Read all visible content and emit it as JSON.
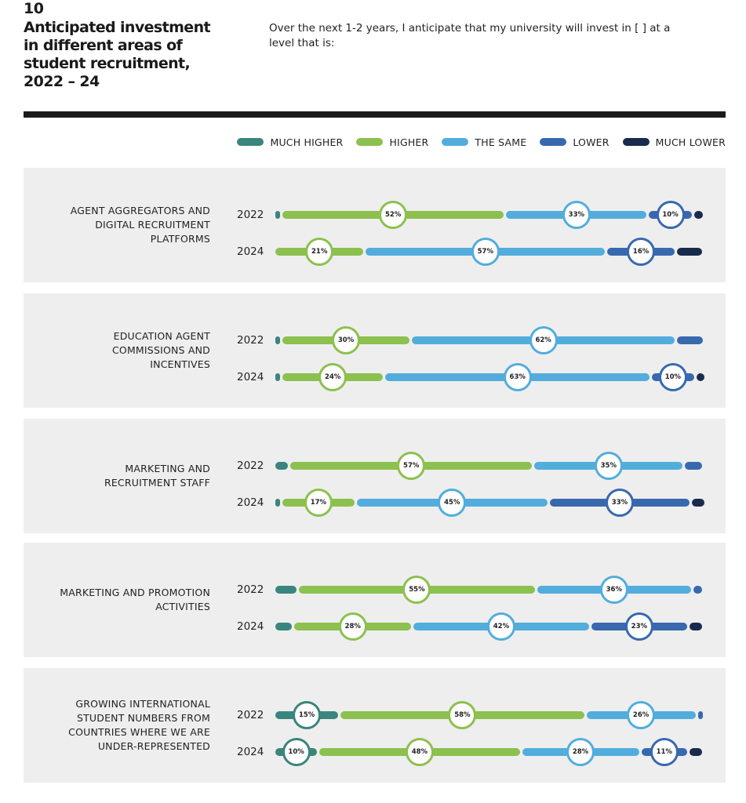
{
  "figure": {
    "number": "10",
    "title_lines": [
      "Anticipated investment",
      "in different areas of",
      "student recruitment,",
      "2022 – 24"
    ],
    "subtitle_lines": [
      "Over the next 1-2 years, I anticipate that my university will invest in [ ] at a",
      "level that is:"
    ]
  },
  "colors": {
    "much_higher": "#3a857d",
    "higher": "#8cc04f",
    "same": "#52addc",
    "lower": "#3869ae",
    "much_lower": "#192b4c"
  },
  "chart_data": {
    "type": "bar",
    "stacked": true,
    "orientation": "horizontal",
    "unit": "%",
    "legend": {
      "position": "top-right",
      "entries": [
        "MUCH HIGHER",
        "HIGHER",
        "THE SAME",
        "LOWER",
        "MUCH LOWER"
      ]
    },
    "series_order": [
      "much_higher",
      "higher",
      "same",
      "lower",
      "much_lower"
    ],
    "groups": [
      {
        "label_lines": [
          "AGENT AGGREGATORS AND",
          "DIGITAL RECRUITMENT",
          "PLATFORMS"
        ],
        "rows": [
          {
            "year": "2022",
            "values": {
              "much_higher": 1,
              "higher": 52,
              "same": 33,
              "lower": 10,
              "much_lower": 2
            },
            "labels": {
              "higher": "52%",
              "same": "33%",
              "lower": "10%"
            }
          },
          {
            "year": "2024",
            "values": {
              "much_higher": 0,
              "higher": 21,
              "same": 57,
              "lower": 16,
              "much_lower": 6
            },
            "labels": {
              "higher": "21%",
              "same": "57%",
              "lower": "16%"
            }
          }
        ]
      },
      {
        "label_lines": [
          "EDUCATION AGENT",
          "COMMISSIONS AND",
          "INCENTIVES"
        ],
        "rows": [
          {
            "year": "2022",
            "values": {
              "much_higher": 1,
              "higher": 30,
              "same": 62,
              "lower": 6,
              "much_lower": 0
            },
            "labels": {
              "higher": "30%",
              "same": "62%"
            }
          },
          {
            "year": "2024",
            "values": {
              "much_higher": 0.5,
              "higher": 24,
              "same": 63,
              "lower": 10,
              "much_lower": 2
            },
            "labels": {
              "higher": "24%",
              "same": "63%",
              "lower": "10%"
            }
          }
        ]
      },
      {
        "label_lines": [
          "MARKETING AND",
          "RECRUITMENT STAFF"
        ],
        "rows": [
          {
            "year": "2022",
            "values": {
              "much_higher": 3,
              "higher": 57,
              "same": 35,
              "lower": 4,
              "much_lower": 0
            },
            "labels": {
              "higher": "57%",
              "same": "35%"
            }
          },
          {
            "year": "2024",
            "values": {
              "much_higher": 0.5,
              "higher": 17,
              "same": 45,
              "lower": 33,
              "much_lower": 3
            },
            "labels": {
              "higher": "17%",
              "same": "45%",
              "lower": "33%"
            }
          }
        ]
      },
      {
        "label_lines": [
          "MARKETING AND PROMOTION",
          "ACTIVITIES"
        ],
        "rows": [
          {
            "year": "2022",
            "values": {
              "much_higher": 5,
              "higher": 55,
              "same": 36,
              "lower": 2,
              "much_lower": 0
            },
            "labels": {
              "higher": "55%",
              "same": "36%"
            }
          },
          {
            "year": "2024",
            "values": {
              "much_higher": 4,
              "higher": 28,
              "same": 42,
              "lower": 23,
              "much_lower": 3
            },
            "labels": {
              "higher": "28%",
              "same": "42%",
              "lower": "23%"
            }
          }
        ]
      },
      {
        "label_lines": [
          "GROWING INTERNATIONAL",
          "STUDENT NUMBERS FROM",
          "COUNTRIES WHERE WE ARE",
          "UNDER-REPRESENTED"
        ],
        "rows": [
          {
            "year": "2022",
            "values": {
              "much_higher": 15,
              "higher": 58,
              "same": 26,
              "lower": 1,
              "much_lower": 0
            },
            "labels": {
              "much_higher": "15%",
              "higher": "58%",
              "same": "26%"
            }
          },
          {
            "year": "2024",
            "values": {
              "much_higher": 10,
              "higher": 48,
              "same": 28,
              "lower": 11,
              "much_lower": 3
            },
            "labels": {
              "much_higher": "10%",
              "higher": "48%",
              "same": "28%",
              "lower": "11%"
            }
          }
        ]
      }
    ]
  }
}
